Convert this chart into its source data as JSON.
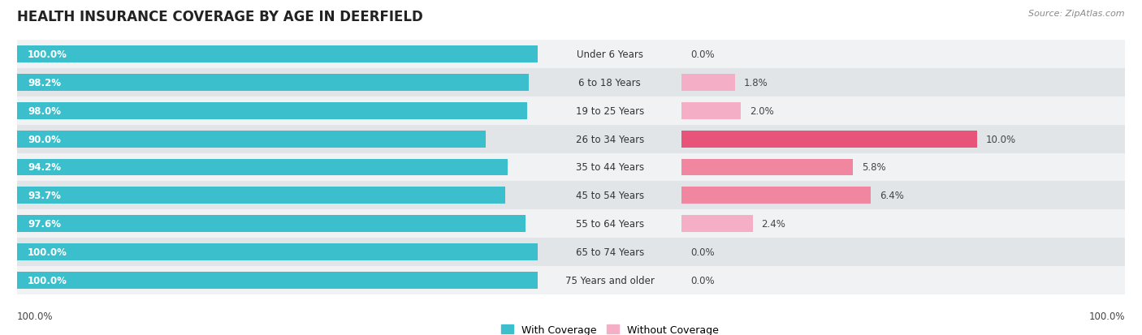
{
  "title": "HEALTH INSURANCE COVERAGE BY AGE IN DEERFIELD",
  "source": "Source: ZipAtlas.com",
  "categories": [
    "Under 6 Years",
    "6 to 18 Years",
    "19 to 25 Years",
    "26 to 34 Years",
    "35 to 44 Years",
    "45 to 54 Years",
    "55 to 64 Years",
    "65 to 74 Years",
    "75 Years and older"
  ],
  "with_coverage": [
    100.0,
    98.2,
    98.0,
    90.0,
    94.2,
    93.7,
    97.6,
    100.0,
    100.0
  ],
  "without_coverage": [
    0.0,
    1.8,
    2.0,
    10.0,
    5.8,
    6.4,
    2.4,
    0.0,
    0.0
  ],
  "color_with": "#3bbfcc",
  "color_without_high": "#e8537a",
  "color_without_mid": "#f086a0",
  "color_without_low": "#f4afc6",
  "color_without_zero": "#f5c8d8",
  "row_bg_even": "#f0f2f4",
  "row_bg_odd": "#e2e5e8",
  "title_fontsize": 12,
  "label_fontsize": 8.5,
  "cat_fontsize": 8.5,
  "legend_fontsize": 9,
  "source_fontsize": 8
}
